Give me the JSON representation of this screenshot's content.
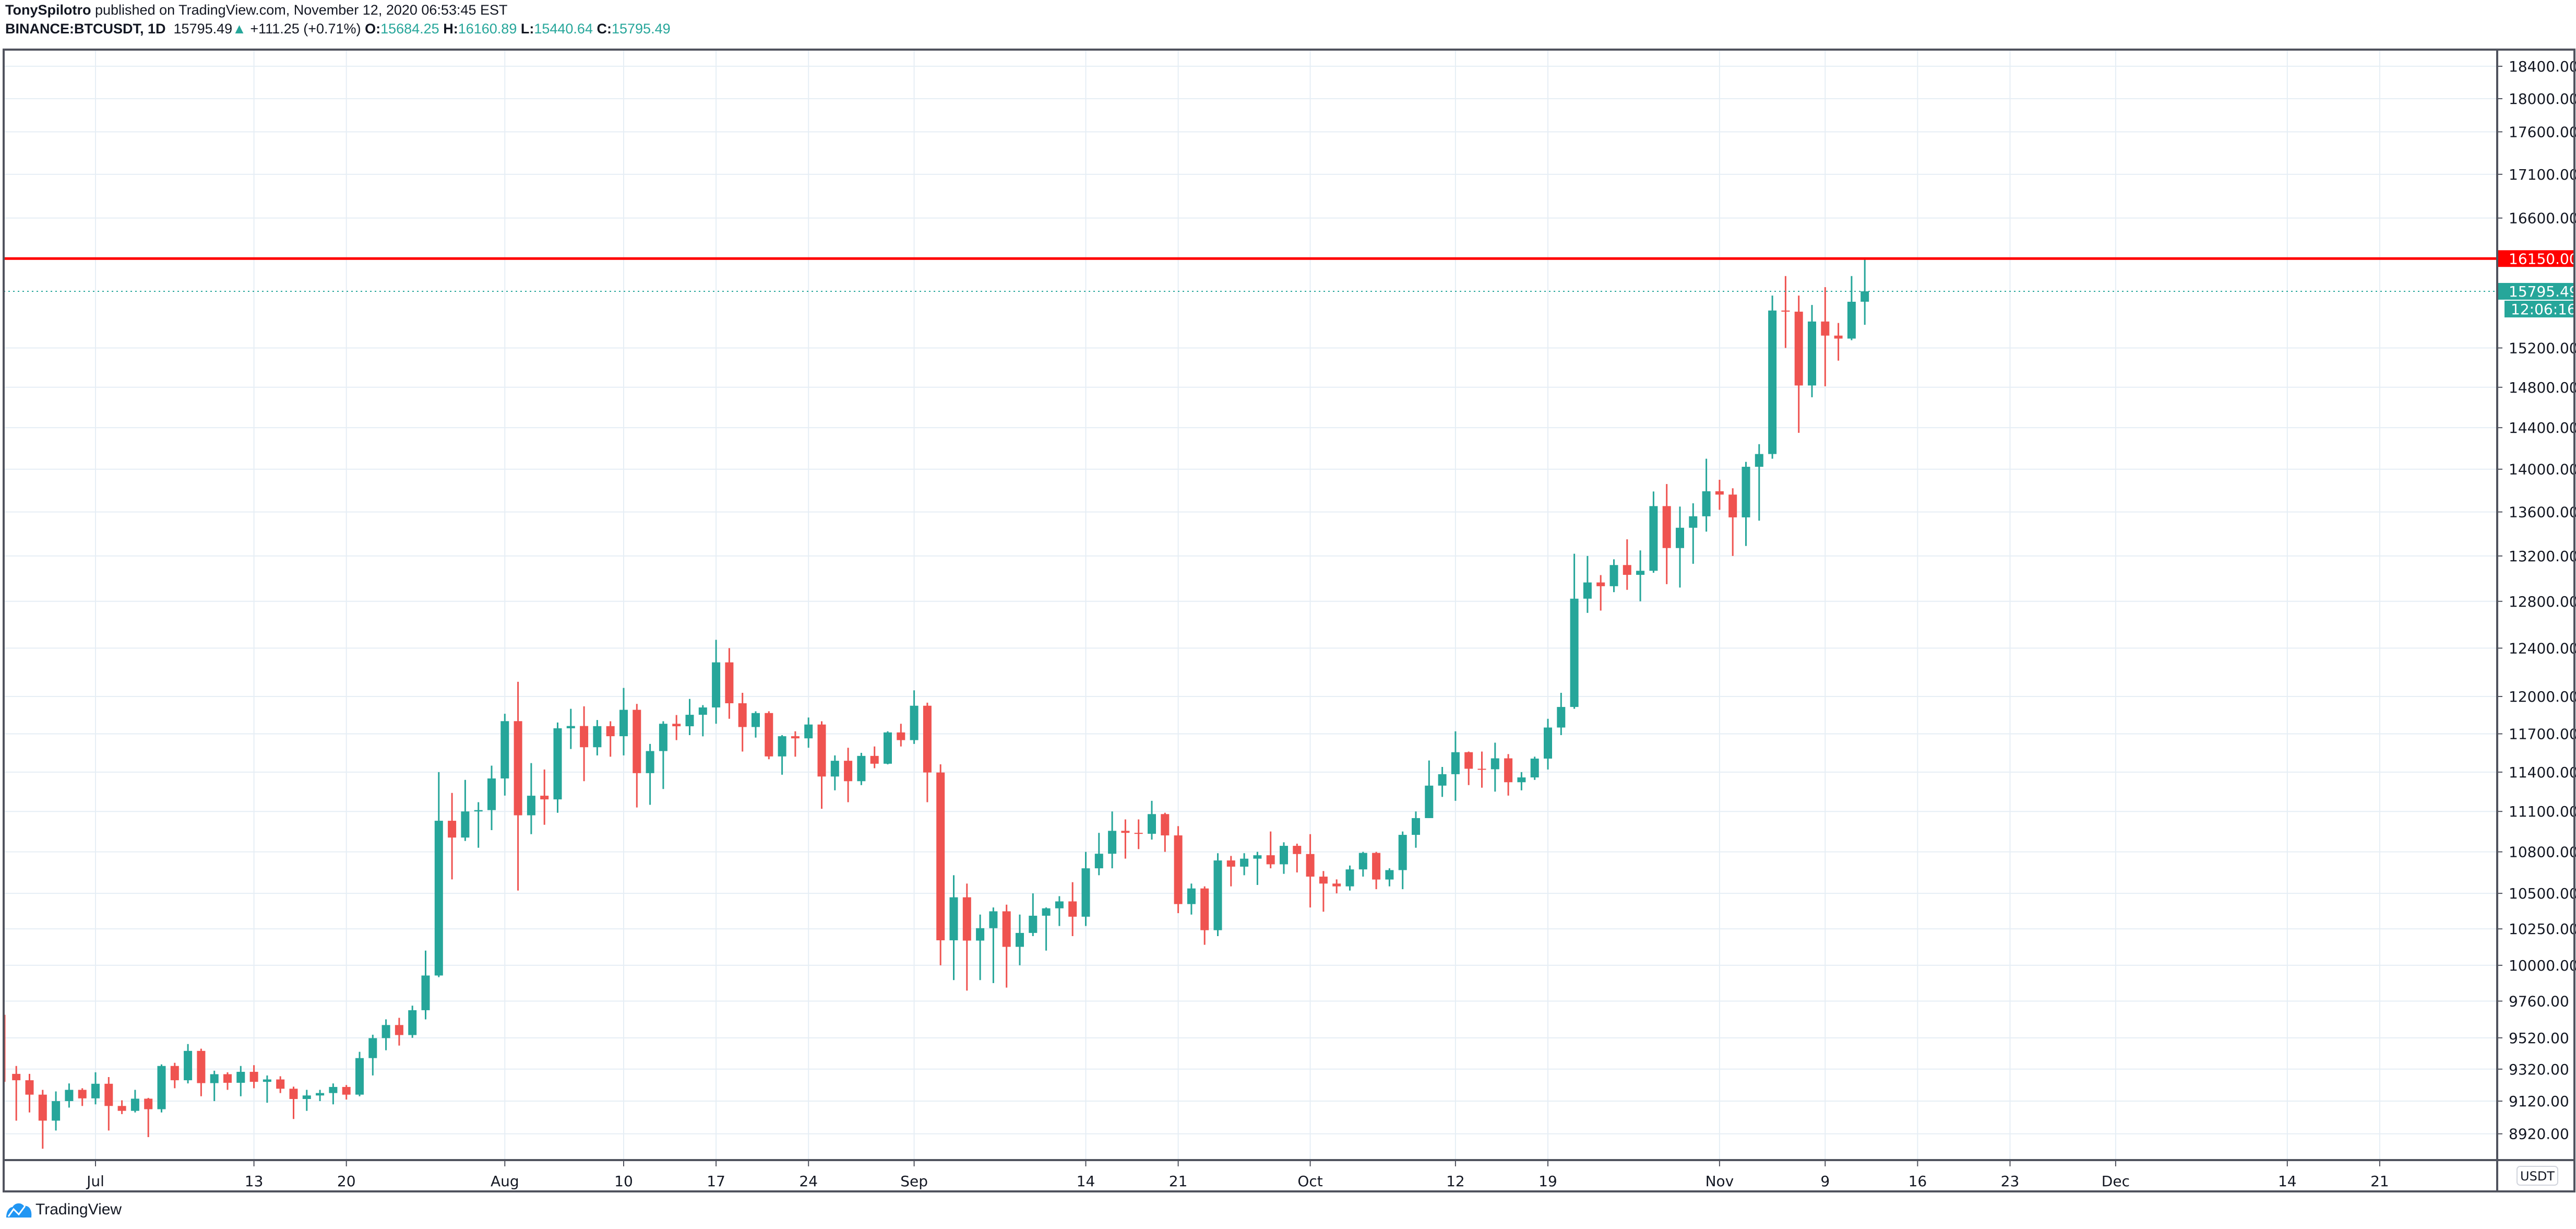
{
  "header": {
    "author": "TonySpilotro",
    "published": "published on TradingView.com, November 12, 2020 06:53:45 EST",
    "symbol": "BINANCE:BTCUSDT, 1D",
    "last": "15795.49",
    "change": "+111.25 (+0.71%)",
    "o_label": "O:",
    "o": "15684.25",
    "h_label": "H:",
    "h": "16160.89",
    "l_label": "L:",
    "l": "15440.64",
    "c_label": "C:",
    "c": "15795.49"
  },
  "footer": {
    "brand": "TradingView",
    "icon": "tradingview-logo-icon"
  },
  "colors": {
    "up": "#26a69a",
    "down": "#ef5350",
    "level": "#ff0000",
    "grid": "#e6eef5",
    "axis": "#50535e"
  },
  "chart_data": {
    "type": "candlestick",
    "scale": "log",
    "grid": true,
    "currency_label": "USDT",
    "ylim": [
      8800,
      18500
    ],
    "y_ticks": [
      "18400.00",
      "18000.00",
      "17600.00",
      "17100.00",
      "16600.00",
      "15200.00",
      "14800.00",
      "14400.00",
      "14000.00",
      "13600.00",
      "13200.00",
      "12800.00",
      "12400.00",
      "12000.00",
      "11700.00",
      "11400.00",
      "11100.00",
      "10800.00",
      "10500.00",
      "10250.00",
      "10000.00",
      "9760.00",
      "9520.00",
      "9320.00",
      "9120.00",
      "8920.00"
    ],
    "x_ticks": [
      [
        "2020-07-01",
        "Jul"
      ],
      [
        "2020-07-13",
        "13"
      ],
      [
        "2020-07-20",
        "20"
      ],
      [
        "2020-08-01",
        "Aug"
      ],
      [
        "2020-08-10",
        "10"
      ],
      [
        "2020-08-17",
        "17"
      ],
      [
        "2020-08-24",
        "24"
      ],
      [
        "2020-09-01",
        "Sep"
      ],
      [
        "2020-09-14",
        "14"
      ],
      [
        "2020-09-21",
        "21"
      ],
      [
        "2020-10-01",
        "Oct"
      ],
      [
        "2020-10-12",
        "12"
      ],
      [
        "2020-10-19",
        "19"
      ],
      [
        "2020-11-01",
        "Nov"
      ],
      [
        "2020-11-09",
        "9"
      ],
      [
        "2020-11-16",
        "16"
      ],
      [
        "2020-11-23",
        "23"
      ],
      [
        "2020-12-01",
        "Dec"
      ],
      [
        "2020-12-14",
        "14"
      ],
      [
        "2020-12-21",
        "21"
      ]
    ],
    "horizontal_level": {
      "value": 16150,
      "label": "16150.00"
    },
    "last_price": {
      "value": 15795.49,
      "label": "15795.49",
      "countdown": "12:06:16"
    },
    "start_date": "2020-06-24",
    "ohlc": [
      [
        9630,
        9670,
        9240,
        9290
      ],
      [
        9290,
        9340,
        9000,
        9250
      ],
      [
        9250,
        9290,
        9050,
        9160
      ],
      [
        9160,
        9190,
        8830,
        9000
      ],
      [
        9000,
        9180,
        8940,
        9120
      ],
      [
        9120,
        9230,
        9080,
        9190
      ],
      [
        9190,
        9200,
        9090,
        9137
      ],
      [
        9137,
        9300,
        9100,
        9228
      ],
      [
        9228,
        9270,
        8940,
        9090
      ],
      [
        9090,
        9125,
        9040,
        9060
      ],
      [
        9060,
        9190,
        9050,
        9135
      ],
      [
        9135,
        9140,
        8900,
        9070
      ],
      [
        9070,
        9350,
        9050,
        9340
      ],
      [
        9340,
        9360,
        9200,
        9250
      ],
      [
        9250,
        9480,
        9230,
        9436
      ],
      [
        9436,
        9450,
        9150,
        9232
      ],
      [
        9232,
        9310,
        9120,
        9288
      ],
      [
        9288,
        9300,
        9190,
        9234
      ],
      [
        9234,
        9340,
        9150,
        9303
      ],
      [
        9303,
        9345,
        9200,
        9240
      ],
      [
        9240,
        9280,
        9110,
        9255
      ],
      [
        9255,
        9275,
        9170,
        9197
      ],
      [
        9197,
        9210,
        9010,
        9133
      ],
      [
        9133,
        9190,
        9060,
        9155
      ],
      [
        9155,
        9190,
        9120,
        9170
      ],
      [
        9170,
        9230,
        9100,
        9208
      ],
      [
        9208,
        9220,
        9130,
        9160
      ],
      [
        9160,
        9430,
        9150,
        9390
      ],
      [
        9390,
        9540,
        9280,
        9518
      ],
      [
        9518,
        9640,
        9440,
        9603
      ],
      [
        9603,
        9650,
        9470,
        9538
      ],
      [
        9538,
        9730,
        9520,
        9700
      ],
      [
        9700,
        10100,
        9640,
        9931
      ],
      [
        9931,
        11400,
        9920,
        11030
      ],
      [
        11030,
        11240,
        10600,
        10905
      ],
      [
        10905,
        11340,
        10880,
        11100
      ],
      [
        11100,
        11170,
        10830,
        11110
      ],
      [
        11110,
        11450,
        10960,
        11351
      ],
      [
        11351,
        11860,
        11220,
        11801
      ],
      [
        11801,
        12120,
        10520,
        11071
      ],
      [
        11071,
        11470,
        10930,
        11219
      ],
      [
        11219,
        11420,
        11000,
        11191
      ],
      [
        11191,
        11790,
        11090,
        11744
      ],
      [
        11744,
        11900,
        11580,
        11762
      ],
      [
        11762,
        11920,
        11330,
        11594
      ],
      [
        11594,
        11810,
        11530,
        11761
      ],
      [
        11761,
        11800,
        11520,
        11681
      ],
      [
        11681,
        12070,
        11530,
        11892
      ],
      [
        11892,
        11940,
        11130,
        11392
      ],
      [
        11392,
        11620,
        11150,
        11564
      ],
      [
        11564,
        11800,
        11270,
        11780
      ],
      [
        11780,
        11850,
        11650,
        11760
      ],
      [
        11760,
        11980,
        11690,
        11852
      ],
      [
        11852,
        11930,
        11680,
        11911
      ],
      [
        11911,
        12470,
        11780,
        12281
      ],
      [
        12281,
        12400,
        11820,
        11945
      ],
      [
        11945,
        12030,
        11560,
        11754
      ],
      [
        11754,
        11880,
        11670,
        11866
      ],
      [
        11866,
        11880,
        11500,
        11522
      ],
      [
        11522,
        11690,
        11380,
        11681
      ],
      [
        11681,
        11720,
        11520,
        11664
      ],
      [
        11664,
        11830,
        11590,
        11774
      ],
      [
        11774,
        11800,
        11120,
        11366
      ],
      [
        11366,
        11530,
        11260,
        11488
      ],
      [
        11488,
        11590,
        11170,
        11330
      ],
      [
        11330,
        11550,
        11300,
        11526
      ],
      [
        11526,
        11600,
        11430,
        11465
      ],
      [
        11465,
        11720,
        11460,
        11711
      ],
      [
        11711,
        11780,
        11600,
        11650
      ],
      [
        11650,
        12050,
        11620,
        11925
      ],
      [
        11925,
        11950,
        11170,
        11397
      ],
      [
        11397,
        11460,
        10000,
        10171
      ],
      [
        10171,
        10630,
        9900,
        10472
      ],
      [
        10472,
        10570,
        9830,
        10169
      ],
      [
        10169,
        10350,
        9900,
        10255
      ],
      [
        10255,
        10400,
        9880,
        10373
      ],
      [
        10373,
        10420,
        9850,
        10126
      ],
      [
        10126,
        10350,
        10000,
        10222
      ],
      [
        10222,
        10500,
        10200,
        10342
      ],
      [
        10342,
        10400,
        10100,
        10394
      ],
      [
        10394,
        10480,
        10270,
        10443
      ],
      [
        10443,
        10580,
        10200,
        10335
      ],
      [
        10335,
        10800,
        10270,
        10680
      ],
      [
        10680,
        10940,
        10630,
        10786
      ],
      [
        10786,
        11100,
        10680,
        10955
      ],
      [
        10955,
        11040,
        10750,
        10940
      ],
      [
        10940,
        11040,
        10820,
        10933
      ],
      [
        10933,
        11180,
        10890,
        11080
      ],
      [
        11080,
        11090,
        10800,
        10921
      ],
      [
        10921,
        10990,
        10360,
        10424
      ],
      [
        10424,
        10570,
        10350,
        10535
      ],
      [
        10535,
        10550,
        10140,
        10241
      ],
      [
        10241,
        10790,
        10200,
        10737
      ],
      [
        10737,
        10770,
        10550,
        10692
      ],
      [
        10692,
        10790,
        10630,
        10750
      ],
      [
        10750,
        10800,
        10560,
        10775
      ],
      [
        10775,
        10950,
        10680,
        10709
      ],
      [
        10709,
        10870,
        10640,
        10844
      ],
      [
        10844,
        10860,
        10650,
        10784
      ],
      [
        10784,
        10930,
        10400,
        10620
      ],
      [
        10620,
        10660,
        10370,
        10570
      ],
      [
        10570,
        10600,
        10500,
        10550
      ],
      [
        10550,
        10700,
        10520,
        10672
      ],
      [
        10672,
        10800,
        10620,
        10792
      ],
      [
        10792,
        10800,
        10530,
        10599
      ],
      [
        10599,
        10680,
        10550,
        10667
      ],
      [
        10667,
        10950,
        10530,
        10925
      ],
      [
        10925,
        11100,
        10830,
        11050
      ],
      [
        11050,
        11490,
        11050,
        11296
      ],
      [
        11296,
        11440,
        11210,
        11384
      ],
      [
        11384,
        11720,
        11180,
        11555
      ],
      [
        11555,
        11560,
        11300,
        11426
      ],
      [
        11426,
        11560,
        11280,
        11422
      ],
      [
        11422,
        11630,
        11250,
        11507
      ],
      [
        11507,
        11540,
        11220,
        11322
      ],
      [
        11322,
        11400,
        11260,
        11359
      ],
      [
        11359,
        11520,
        11340,
        11505
      ],
      [
        11505,
        11820,
        11420,
        11750
      ],
      [
        11750,
        12030,
        11690,
        11915
      ],
      [
        11915,
        13220,
        11900,
        12823
      ],
      [
        12823,
        13200,
        12700,
        12965
      ],
      [
        12965,
        13030,
        12720,
        12932
      ],
      [
        12932,
        13170,
        12880,
        13119
      ],
      [
        13119,
        13350,
        12900,
        13032
      ],
      [
        13032,
        13250,
        12800,
        13068
      ],
      [
        13068,
        13790,
        13050,
        13654
      ],
      [
        13654,
        13860,
        12950,
        13271
      ],
      [
        13271,
        13650,
        12920,
        13455
      ],
      [
        13455,
        13680,
        13130,
        13560
      ],
      [
        13560,
        14100,
        13420,
        13792
      ],
      [
        13792,
        13900,
        13620,
        13761
      ],
      [
        13761,
        13820,
        13200,
        13550
      ],
      [
        13550,
        14070,
        13290,
        14023
      ],
      [
        14023,
        14240,
        13520,
        14145
      ],
      [
        14145,
        15750,
        14100,
        15591
      ],
      [
        15591,
        15960,
        15200,
        15579
      ],
      [
        15579,
        15750,
        14350,
        14818
      ],
      [
        14818,
        15650,
        14700,
        15475
      ],
      [
        15475,
        15840,
        14810,
        15328
      ],
      [
        15328,
        15460,
        15070,
        15297
      ],
      [
        15297,
        15960,
        15280,
        15684
      ],
      [
        15684.25,
        16160.89,
        15440.64,
        15795.49
      ]
    ]
  }
}
